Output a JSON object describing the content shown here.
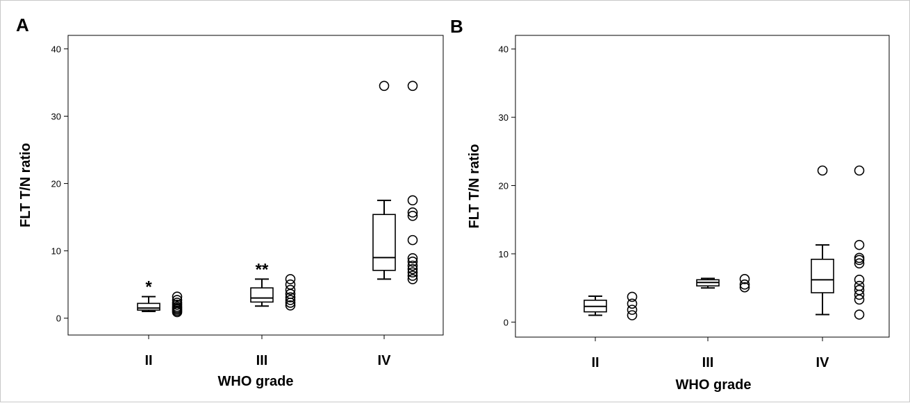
{
  "chart_data": [
    {
      "panel": "A",
      "type": "box",
      "xlabel": "WHO grade",
      "ylabel": "FLT T/N ratio",
      "ylim": [
        -2.5,
        42
      ],
      "yticks": [
        0,
        10,
        20,
        30,
        40
      ],
      "categories": [
        "II",
        "III",
        "IV"
      ],
      "boxes": [
        {
          "category": "II",
          "whisker_low": 1.0,
          "q1": 1.2,
          "median": 1.5,
          "q3": 2.2,
          "whisker_high": 3.2,
          "points": [
            0.9,
            1.1,
            1.3,
            1.5,
            1.7,
            2.0,
            2.3,
            2.7,
            3.2
          ],
          "annotation": "*"
        },
        {
          "category": "III",
          "whisker_low": 1.8,
          "q1": 2.4,
          "median": 3.0,
          "q3": 4.5,
          "whisker_high": 5.8,
          "points": [
            1.9,
            2.3,
            2.7,
            3.1,
            3.6,
            4.2,
            5.0,
            5.8
          ],
          "annotation": "**"
        },
        {
          "category": "IV",
          "whisker_low": 5.8,
          "q1": 7.1,
          "median": 9.0,
          "q3": 15.4,
          "whisker_high": 17.5,
          "points": [
            5.8,
            6.3,
            6.8,
            7.3,
            7.8,
            8.4,
            8.9,
            11.6,
            15.2,
            15.7,
            17.5,
            34.5
          ],
          "outliers": [
            34.5
          ],
          "annotation": ""
        }
      ]
    },
    {
      "panel": "B",
      "type": "box",
      "xlabel": "WHO grade",
      "ylabel": "FLT T/N ratio",
      "ylim": [
        -2.2,
        42
      ],
      "yticks": [
        0,
        10,
        20,
        30,
        40
      ],
      "categories": [
        "II",
        "III",
        "IV"
      ],
      "boxes": [
        {
          "category": "II",
          "whisker_low": 1.0,
          "q1": 1.5,
          "median": 2.3,
          "q3": 3.2,
          "whisker_high": 3.8,
          "points": [
            1.0,
            1.8,
            2.7,
            3.7
          ],
          "annotation": ""
        },
        {
          "category": "III",
          "whisker_low": 5.0,
          "q1": 5.3,
          "median": 5.8,
          "q3": 6.2,
          "whisker_high": 6.4,
          "points": [
            5.1,
            5.5,
            6.3
          ],
          "annotation": ""
        },
        {
          "category": "IV",
          "whisker_low": 1.1,
          "q1": 4.3,
          "median": 6.2,
          "q3": 9.2,
          "whisker_high": 11.3,
          "points": [
            1.1,
            3.3,
            4.0,
            4.7,
            5.3,
            6.2,
            8.6,
            9.1,
            9.4,
            11.3,
            22.2
          ],
          "outliers": [
            22.2
          ],
          "annotation": ""
        }
      ]
    }
  ]
}
